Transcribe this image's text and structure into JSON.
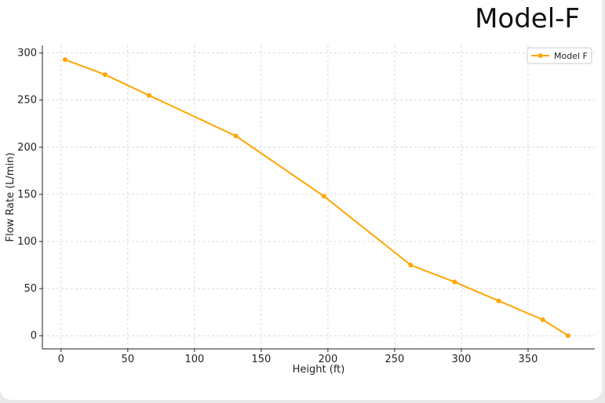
{
  "header": {
    "title": "Model-F"
  },
  "chart_data": {
    "type": "line",
    "title": "Model-F",
    "xlabel": "Height (ft)",
    "ylabel": "Flow Rate (L/min)",
    "xlim": [
      -14,
      400
    ],
    "ylim": [
      -14,
      308
    ],
    "xticks": [
      0,
      50,
      100,
      150,
      200,
      250,
      300,
      350
    ],
    "yticks": [
      0,
      50,
      100,
      150,
      200,
      250,
      300
    ],
    "grid": true,
    "legend_position": "top-right",
    "series": [
      {
        "name": "Model F",
        "color": "#FFA500",
        "x": [
          3,
          33,
          66,
          131,
          197,
          262,
          295,
          328,
          361,
          380
        ],
        "y": [
          293,
          277,
          255,
          212,
          148,
          75,
          57,
          37,
          17,
          0
        ]
      }
    ]
  }
}
